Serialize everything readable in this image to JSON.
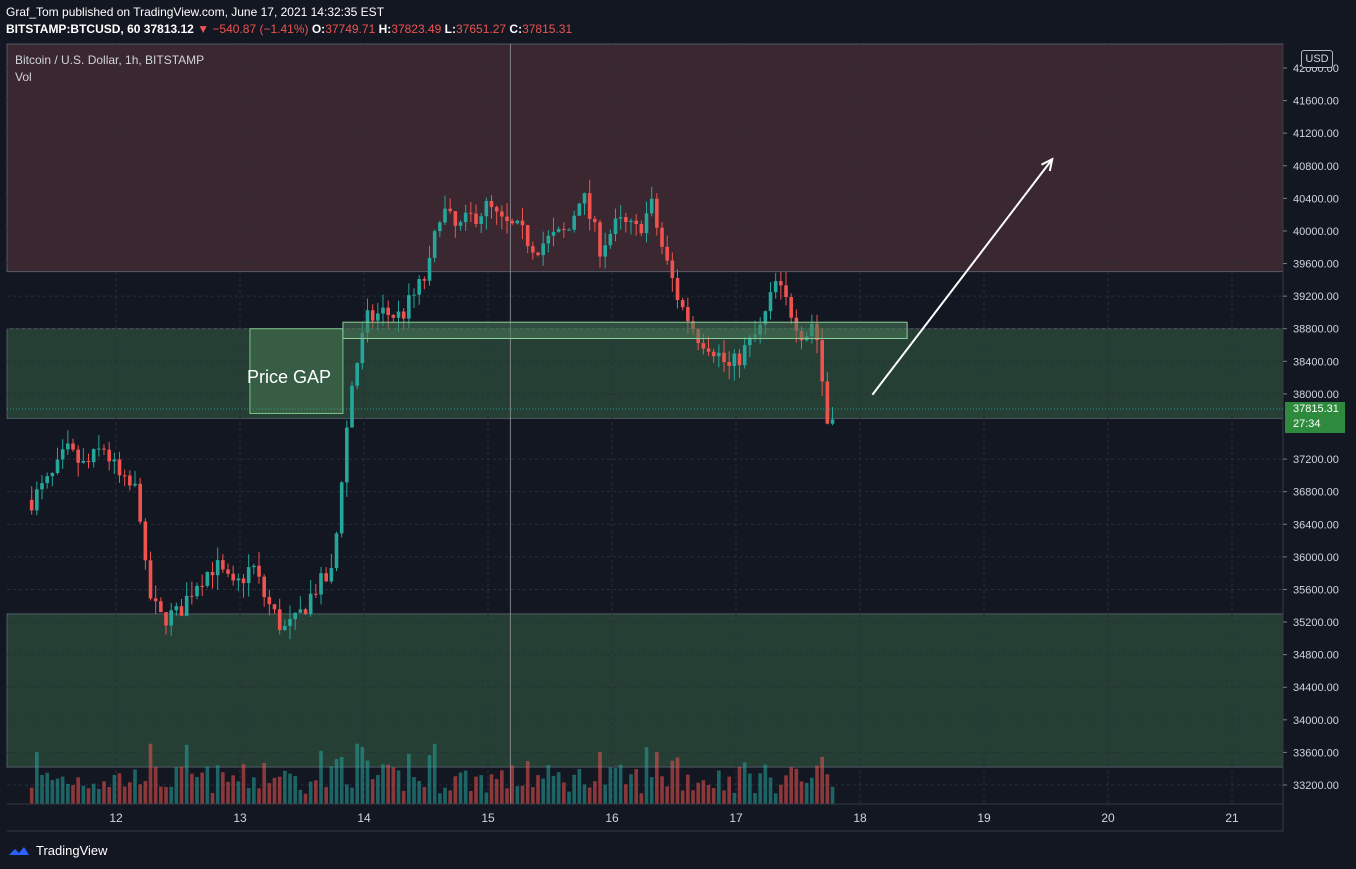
{
  "header": {
    "line1": "Graf_Tom published on TradingView.com, June 17, 2021 14:32:35 EST",
    "symbol": "BITSTAMP:BTCUSD, 60",
    "last": "37813.12",
    "change": "−540.87 (−1.41%)",
    "o_label": "O:",
    "o_value": "37749.71",
    "h_label": "H:",
    "h_value": "37823.49",
    "l_label": "L:",
    "l_value": "37651.27",
    "c_label": "C:",
    "c_value": "37815.31"
  },
  "pane": {
    "title": "Bitcoin / U.S. Dollar, 1h, BITSTAMP",
    "vol_label": "Vol",
    "currency": "USD",
    "gap_label": "Price GAP",
    "last_price": "37815.31",
    "countdown": "27:34"
  },
  "footer": {
    "brand": "TradingView"
  },
  "colors": {
    "background": "#131722",
    "up": "#26a69a",
    "down": "#ef5350",
    "resistance_zone": "#3a272f",
    "support_zone": "#253f35",
    "last_price_badge": "#2e8b3e"
  },
  "chart_data": {
    "type": "candlestick",
    "y_axis": {
      "min": 33000,
      "max": 42000,
      "ticks": [
        42000,
        41600,
        41200,
        40800,
        40400,
        40000,
        39600,
        39200,
        38800,
        38400,
        38000,
        37200,
        36800,
        36400,
        36000,
        35600,
        35200,
        34800,
        34400,
        34000,
        33600,
        33200
      ],
      "tick_labels": [
        "42000.00",
        "41600.00",
        "41200.00",
        "40800.00",
        "40400.00",
        "40000.00",
        "39600.00",
        "39200.00",
        "38800.00",
        "38400.00",
        "38000.00",
        "37200.00",
        "36800.00",
        "36400.00",
        "36000.00",
        "35600.00",
        "35200.00",
        "34800.00",
        "34400.00",
        "34000.00",
        "33600.00",
        "33200.00"
      ]
    },
    "x_axis": {
      "min": 11.3,
      "max": 21.5,
      "ticks": [
        12,
        13,
        14,
        15,
        16,
        17,
        18,
        19,
        20,
        21
      ],
      "tick_labels": [
        "12",
        "13",
        "14",
        "15",
        "16",
        "17",
        "18",
        "19",
        "20",
        "21"
      ],
      "crosshair": 15.18
    },
    "zones": [
      {
        "name": "resistance",
        "from": 39500,
        "to": 42400
      },
      {
        "name": "gap",
        "from": 37700,
        "to": 38800
      },
      {
        "name": "support",
        "from": 33420,
        "to": 35300
      }
    ],
    "gap_box": {
      "x0": 13.08,
      "x1": 13.83,
      "y0": 37760,
      "y1": 38800
    },
    "thin_box": {
      "x0": 13.83,
      "x1": 18.38,
      "y0": 38680,
      "y1": 38880
    },
    "arrow": {
      "from": [
        18.1,
        37990
      ],
      "to": [
        19.55,
        40880
      ]
    },
    "anchors": [
      [
        11.32,
        36700
      ],
      [
        11.5,
        37000
      ],
      [
        11.6,
        37300
      ],
      [
        11.75,
        37100
      ],
      [
        11.9,
        37350
      ],
      [
        12.05,
        36900
      ],
      [
        12.18,
        36800
      ],
      [
        12.25,
        35600
      ],
      [
        12.35,
        35250
      ],
      [
        12.5,
        35300
      ],
      [
        12.65,
        35700
      ],
      [
        12.8,
        35900
      ],
      [
        12.95,
        35600
      ],
      [
        13.1,
        35900
      ],
      [
        13.2,
        35500
      ],
      [
        13.35,
        35100
      ],
      [
        13.45,
        35200
      ],
      [
        13.6,
        35600
      ],
      [
        13.75,
        35800
      ],
      [
        13.82,
        37000
      ],
      [
        13.9,
        38100
      ],
      [
        14.02,
        38900
      ],
      [
        14.15,
        39000
      ],
      [
        14.3,
        38950
      ],
      [
        14.4,
        39200
      ],
      [
        14.52,
        39500
      ],
      [
        14.62,
        40300
      ],
      [
        14.75,
        40000
      ],
      [
        14.85,
        40150
      ],
      [
        15.0,
        40300
      ],
      [
        15.1,
        40100
      ],
      [
        15.25,
        40000
      ],
      [
        15.38,
        39800
      ],
      [
        15.5,
        39900
      ],
      [
        15.65,
        40000
      ],
      [
        15.75,
        40500
      ],
      [
        15.9,
        39800
      ],
      [
        16.05,
        40100
      ],
      [
        16.2,
        40000
      ],
      [
        16.32,
        40300
      ],
      [
        16.42,
        39700
      ],
      [
        16.55,
        39100
      ],
      [
        16.7,
        38700
      ],
      [
        16.8,
        38600
      ],
      [
        16.95,
        38300
      ],
      [
        17.05,
        38500
      ],
      [
        17.2,
        38800
      ],
      [
        17.32,
        39350
      ],
      [
        17.45,
        39000
      ],
      [
        17.55,
        38700
      ],
      [
        17.62,
        38900
      ],
      [
        17.68,
        38500
      ],
      [
        17.72,
        37600
      ],
      [
        17.78,
        37815
      ]
    ],
    "volume": {
      "unit": "relative",
      "max": 1.0
    }
  }
}
